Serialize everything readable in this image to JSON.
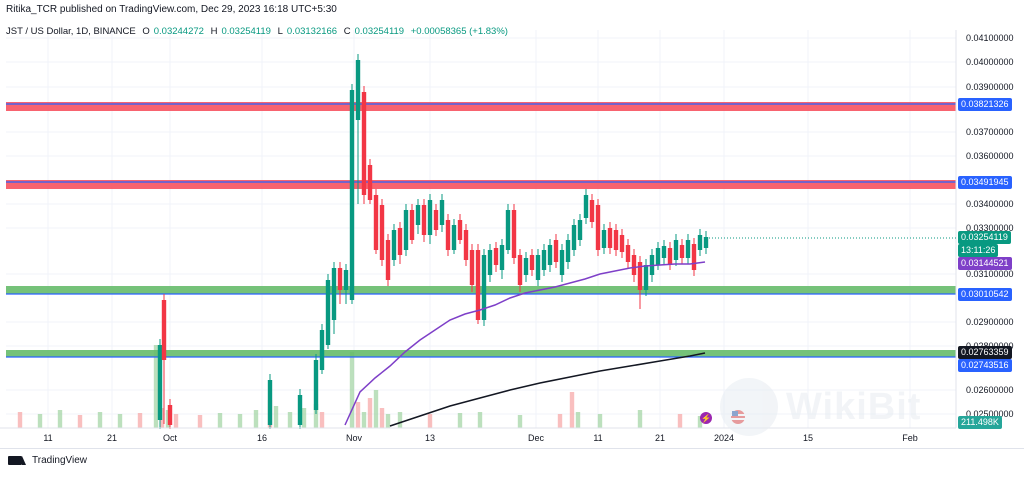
{
  "header": {
    "publisher_line": "Ritika_TCR published on TradingView.com, Dec 29, 2023 16:18 UTC+5:30"
  },
  "symbol": {
    "name": "JST / US Dollar, 1D, BINANCE",
    "o_label": "O",
    "o_value": "0.03244272",
    "h_label": "H",
    "h_value": "0.03254119",
    "l_label": "L",
    "l_value": "0.03132166",
    "c_label": "C",
    "c_value": "0.03254119",
    "change": "+0.00058365 (+1.83%)"
  },
  "axis": {
    "price_ticks": [
      "0.04100000",
      "0.04000000",
      "0.03900000",
      "0.03700000",
      "0.03600000",
      "0.03400000",
      "0.03300000",
      "0.03100000",
      "0.02900000",
      "0.02800000",
      "0.02600000",
      "0.02500000"
    ],
    "time_ticks": [
      "11",
      "21",
      "Oct",
      "16",
      "Nov",
      "13",
      "Dec",
      "11",
      "21",
      "2024",
      "15",
      "Feb"
    ]
  },
  "badges": {
    "res_upper": "0.03821326",
    "res_mid": "0.03491945",
    "last_price": "0.03254119",
    "countdown": "13:11:26",
    "ma_short": "0.03144521",
    "sup_upper": "0.03010542",
    "ma_long": "0.02763359",
    "sup_lower": "0.02743516",
    "volume": "211.498K"
  },
  "colors": {
    "up": "#089981",
    "down": "#f23645",
    "resistance_fill": "#f7525f",
    "support_fill": "#66bb6a",
    "band_line": "#2962ff",
    "ma_short": "#7e3fc8",
    "ma_long": "#131722"
  },
  "footer": {
    "brand": "TradingView"
  },
  "watermark": {
    "text": "WikiBit"
  }
}
